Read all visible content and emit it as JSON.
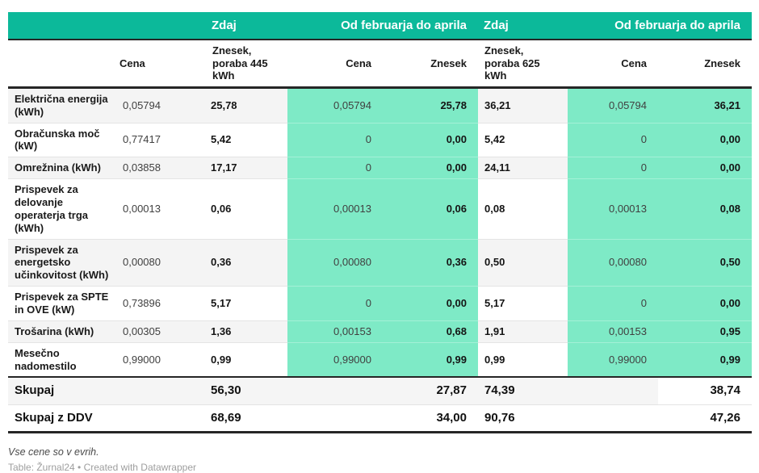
{
  "colors": {
    "header_teal": "#0cb99a",
    "column_teal": "#7eeac6",
    "stripe_gray": "#f4f4f4",
    "rule_dark": "#262626"
  },
  "chart_data": {
    "type": "table",
    "group_headers": [
      {
        "label": ""
      },
      {
        "label": "Zdaj"
      },
      {
        "label": "Od februarja do aprila"
      },
      {
        "label": "Zdaj"
      },
      {
        "label": "Od februarja do aprila"
      }
    ],
    "columns": [
      "",
      "Cena",
      "Znesek, poraba 445 kWh",
      "Cena",
      "Znesek",
      "Znesek, poraba 625 kWh",
      "Cena",
      "Znesek"
    ],
    "rows": [
      {
        "label": "Električna energija (kWh)",
        "values": [
          "0,05794",
          "25,78",
          "0,05794",
          "25,78",
          "36,21",
          "0,05794",
          "36,21"
        ]
      },
      {
        "label": "Obračunska moč (kW)",
        "values": [
          "0,77417",
          "5,42",
          "0",
          "0,00",
          "5,42",
          "0",
          "0,00"
        ]
      },
      {
        "label": "Omrežnina (kWh)",
        "values": [
          "0,03858",
          "17,17",
          "0",
          "0,00",
          "24,11",
          "0",
          "0,00"
        ]
      },
      {
        "label": "Prispevek za delovanje operaterja trga (kWh)",
        "values": [
          "0,00013",
          "0,06",
          "0,00013",
          "0,06",
          "0,08",
          "0,00013",
          "0,08"
        ]
      },
      {
        "label": "Prispevek za energetsko učinkovitost (kWh)",
        "values": [
          "0,00080",
          "0,36",
          "0,00080",
          "0,36",
          "0,50",
          "0,00080",
          "0,50"
        ]
      },
      {
        "label": "Prispevek za SPTE in OVE (kW)",
        "values": [
          "0,73896",
          "5,17",
          "0",
          "0,00",
          "5,17",
          "0",
          "0,00"
        ]
      },
      {
        "label": "Trošarina (kWh)",
        "values": [
          "0,00305",
          "1,36",
          "0,00153",
          "0,68",
          "1,91",
          "0,00153",
          "0,95"
        ]
      },
      {
        "label": "Mesečno nadomestilo",
        "values": [
          "0,99000",
          "0,99",
          "0,99000",
          "0,99",
          "0,99",
          "0,99000",
          "0,99"
        ]
      }
    ],
    "totals": [
      {
        "label": "Skupaj",
        "values": [
          "",
          "56,30",
          "",
          "27,87",
          "74,39",
          "",
          "38,74"
        ]
      },
      {
        "label": "Skupaj z DDV",
        "values": [
          "",
          "68,69",
          "",
          "34,00",
          "90,76",
          "",
          "47,26"
        ]
      }
    ],
    "notes": "Vse cene so v evrih.",
    "attribution": "Table: Žurnal24 • Created with Datawrapper"
  }
}
